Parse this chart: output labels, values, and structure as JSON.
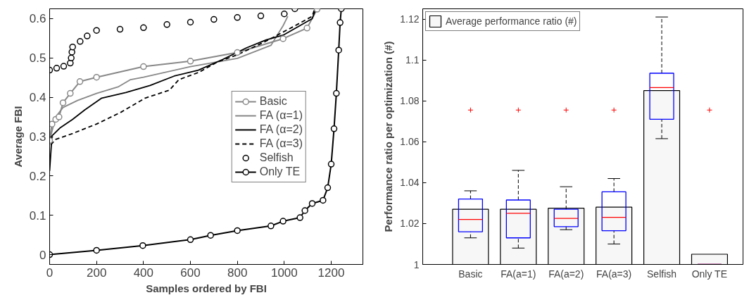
{
  "chart_data": [
    {
      "type": "line",
      "xlabel": "Samples ordered by FBI",
      "ylabel": "Average FBI",
      "xlim": [
        0,
        1335
      ],
      "ylim": [
        -0.025,
        0.625
      ],
      "xticks": [
        0,
        200,
        400,
        600,
        800,
        1000,
        1200
      ],
      "yticks": [
        0,
        0.1,
        0.2,
        0.3,
        0.4,
        0.5,
        0.6
      ],
      "grid": false,
      "legend": "right",
      "series": [
        {
          "name": "Basic",
          "color": "#888888",
          "marker": "circle",
          "x": [
            0,
            10,
            26,
            40,
            57,
            88,
            129,
            200,
            400,
            600,
            800,
            995,
            1097,
            1140
          ],
          "values": [
            0.29,
            0.332,
            0.344,
            0.35,
            0.386,
            0.41,
            0.44,
            0.451,
            0.478,
            0.492,
            0.514,
            0.549,
            0.576,
            0.624
          ]
        },
        {
          "name": "FA (α=1)",
          "color": "#888888",
          "x": [
            0,
            26,
            57,
            119,
            200,
            294,
            345,
            400,
            600,
            800,
            943,
            995,
            1015
          ],
          "values": [
            0.29,
            0.35,
            0.374,
            0.392,
            0.41,
            0.427,
            0.445,
            0.451,
            0.478,
            0.499,
            0.532,
            0.582,
            0.606
          ]
        },
        {
          "name": "FA (α=2)",
          "color": "#000000",
          "x": [
            0,
            10,
            46,
            98,
            150,
            222,
            325,
            428,
            531,
            634,
            737,
            840,
            923,
            995,
            1119,
            1134
          ],
          "values": [
            0.213,
            0.302,
            0.323,
            0.344,
            0.368,
            0.398,
            0.412,
            0.43,
            0.454,
            0.469,
            0.496,
            0.526,
            0.546,
            0.558,
            0.6,
            0.624
          ]
        },
        {
          "name": "FA (α=3)",
          "color": "#000000",
          "line_style": "dashed",
          "x": [
            5,
            26,
            98,
            200,
            304,
            407,
            510,
            551,
            634,
            716,
            800,
            923,
            1046,
            1119,
            1129
          ],
          "values": [
            0.279,
            0.293,
            0.308,
            0.332,
            0.362,
            0.398,
            0.418,
            0.445,
            0.463,
            0.49,
            0.508,
            0.543,
            0.582,
            0.606,
            0.624
          ]
        },
        {
          "name": "Selfish",
          "type": "scatter",
          "color": "#000000",
          "marker": "circle",
          "x": [
            0,
            30,
            60,
            88,
            92,
            95,
            98,
            130,
            160,
            200,
            300,
            400,
            500,
            600,
            700,
            800,
            900,
            1000,
            1045
          ],
          "values": [
            0.469,
            0.474,
            0.479,
            0.487,
            0.5,
            0.515,
            0.528,
            0.542,
            0.556,
            0.57,
            0.573,
            0.577,
            0.585,
            0.591,
            0.598,
            0.603,
            0.607,
            0.612,
            0.625
          ]
        },
        {
          "name": "Only TE",
          "color": "#000000",
          "marker": "circle",
          "x": [
            0,
            200,
            397,
            600,
            686,
            800,
            943,
            995,
            1067,
            1088,
            1119,
            1165,
            1185,
            1200,
            1212,
            1222,
            1232,
            1238,
            1243
          ],
          "values": [
            0,
            0.011,
            0.023,
            0.038,
            0.049,
            0.061,
            0.073,
            0.085,
            0.094,
            0.112,
            0.13,
            0.138,
            0.17,
            0.23,
            0.32,
            0.41,
            0.52,
            0.59,
            0.625
          ]
        }
      ]
    },
    {
      "type": "bar",
      "ylabel": "Performance ratio per optimization (#)",
      "categories": [
        "Basic",
        "FA(a=1)",
        "FA(a=2)",
        "FA(a=3)",
        "Selfish",
        "Only TE"
      ],
      "ylim": [
        1,
        1.125
      ],
      "yticks": [
        1,
        1.02,
        1.04,
        1.06,
        1.08,
        1.1,
        1.12
      ],
      "grid": false,
      "legend": "top left",
      "series": [
        {
          "name": "Average performance ratio (#)",
          "type": "bar",
          "color": "#f7f7f7",
          "values": [
            1.027,
            1.027,
            1.0275,
            1.028,
            1.085,
            1.005
          ]
        },
        {
          "type": "box",
          "color": "#0000ff",
          "boxes": [
            {
              "low": 1.013,
              "q1": 1.016,
              "median": 1.022,
              "q3": 1.032,
              "high": 1.036,
              "outliers": [
                1.0755
              ]
            },
            {
              "low": 1.008,
              "q1": 1.013,
              "median": 1.025,
              "q3": 1.0315,
              "high": 1.046,
              "outliers": [
                1.0755
              ]
            },
            {
              "low": 1.017,
              "q1": 1.0185,
              "median": 1.0225,
              "q3": 1.027,
              "high": 1.038,
              "outliers": [
                1.0755
              ]
            },
            {
              "low": 1.01,
              "q1": 1.0165,
              "median": 1.023,
              "q3": 1.0355,
              "high": 1.042,
              "outliers": [
                1.0755
              ]
            },
            {
              "low": 1.0615,
              "q1": 1.071,
              "median": 1.0865,
              "q3": 1.0935,
              "high": 1.121
            },
            {
              "low": 1.0,
              "q1": 1.0,
              "median": 1.0,
              "q3": 1.0,
              "high": 1.0,
              "outliers": [
                1.0755
              ]
            }
          ]
        }
      ]
    }
  ]
}
